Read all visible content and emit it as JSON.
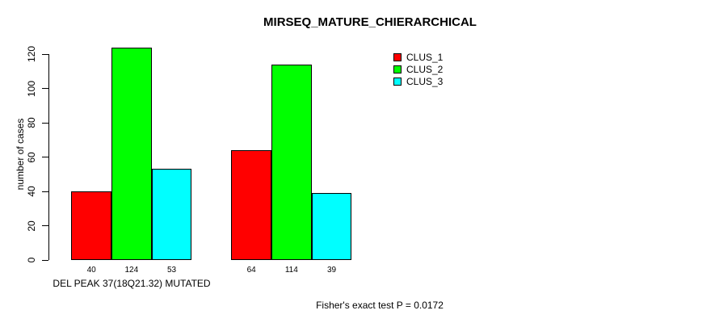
{
  "title": "MIRSEQ_MATURE_CHIERARCHICAL",
  "chart_data": {
    "type": "bar",
    "title": "MIRSEQ_MATURE_CHIERARCHICAL",
    "ylabel": "number of cases",
    "xlabel": "",
    "ylim": [
      0,
      130
    ],
    "yticks": [
      0,
      20,
      40,
      60,
      80,
      100,
      120
    ],
    "grid": false,
    "legend_position": "top-right",
    "background": "#ffffff",
    "axis_color": "#000000",
    "groups": [
      {
        "label": "DEL PEAK 37(18Q21.32) MUTATED",
        "bar_labels": [
          "40",
          "124",
          "53"
        ]
      },
      {
        "label": "",
        "bar_labels": [
          "64",
          "114",
          "39"
        ]
      }
    ],
    "series": [
      {
        "name": "CLUS_1",
        "color": "#ff0000",
        "values": [
          40,
          64
        ]
      },
      {
        "name": "CLUS_2",
        "color": "#00ff00",
        "values": [
          124,
          114
        ]
      },
      {
        "name": "CLUS_3",
        "color": "#00ffff",
        "values": [
          53,
          39
        ]
      }
    ],
    "annotation": "Fisher's exact test P = 0.0172"
  }
}
